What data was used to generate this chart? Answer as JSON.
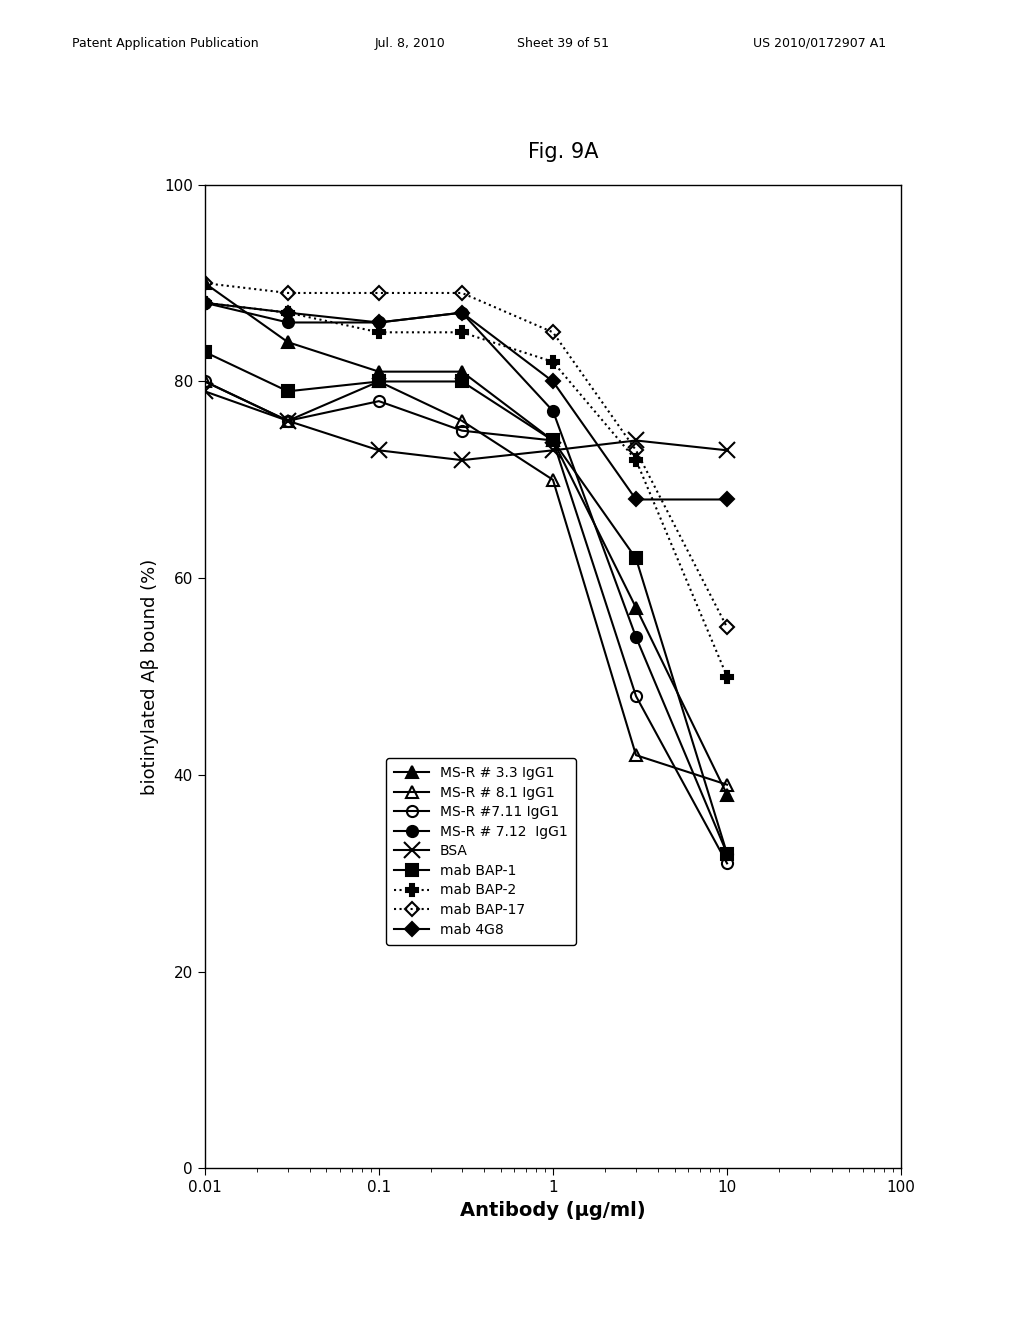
{
  "title": "Fig. 9A",
  "xlabel": "Antibody (μg/ml)",
  "ylabel": "biotinylated Aβ bound (%)",
  "xlim": [
    0.01,
    100
  ],
  "ylim": [
    0,
    100
  ],
  "yticks": [
    0,
    20,
    40,
    60,
    80,
    100
  ],
  "xtick_labels": [
    "0.01",
    "0.1",
    "1",
    "10",
    "100"
  ],
  "series": [
    {
      "label": "MS-R # 3.3 IgG1",
      "x": [
        0.01,
        0.03,
        0.1,
        0.3,
        1,
        3,
        10
      ],
      "y": [
        90,
        84,
        81,
        81,
        74,
        57,
        38
      ],
      "color": "#000000",
      "linestyle": "-",
      "marker": "^",
      "marker_filled": true,
      "linewidth": 1.5
    },
    {
      "label": "MS-R # 8.1 IgG1",
      "x": [
        0.01,
        0.03,
        0.1,
        0.3,
        1,
        3,
        10
      ],
      "y": [
        80,
        76,
        80,
        76,
        70,
        42,
        39
      ],
      "color": "#000000",
      "linestyle": "-",
      "marker": "^",
      "marker_filled": false,
      "linewidth": 1.5
    },
    {
      "label": "MS-R #7.11 IgG1",
      "x": [
        0.01,
        0.03,
        0.1,
        0.3,
        1,
        3,
        10
      ],
      "y": [
        80,
        76,
        78,
        75,
        74,
        48,
        31
      ],
      "color": "#000000",
      "linestyle": "-",
      "marker": "o",
      "marker_filled": false,
      "linewidth": 1.5
    },
    {
      "label": "MS-R # 7.12  IgG1",
      "x": [
        0.01,
        0.03,
        0.1,
        0.3,
        1,
        3,
        10
      ],
      "y": [
        88,
        86,
        86,
        87,
        77,
        54,
        32
      ],
      "color": "#000000",
      "linestyle": "-",
      "marker": "o",
      "marker_filled": true,
      "linewidth": 1.5
    },
    {
      "label": "BSA",
      "x": [
        0.01,
        0.03,
        0.1,
        0.3,
        1,
        3,
        10
      ],
      "y": [
        79,
        76,
        73,
        72,
        73,
        74,
        73
      ],
      "color": "#000000",
      "linestyle": "-",
      "marker": "x",
      "marker_filled": true,
      "linewidth": 1.5
    },
    {
      "label": "mab BAP-1",
      "x": [
        0.01,
        0.03,
        0.1,
        0.3,
        1,
        3,
        10
      ],
      "y": [
        83,
        79,
        80,
        80,
        74,
        62,
        32
      ],
      "color": "#000000",
      "linestyle": "-",
      "marker": "s",
      "marker_filled": true,
      "linewidth": 1.5
    },
    {
      "label": "mab BAP-2",
      "x": [
        0.01,
        0.03,
        0.1,
        0.3,
        1,
        3,
        10
      ],
      "y": [
        88,
        87,
        85,
        85,
        82,
        72,
        50
      ],
      "color": "#000000",
      "linestyle": ":",
      "marker": "P",
      "marker_filled": true,
      "linewidth": 1.5
    },
    {
      "label": "mab BAP-17",
      "x": [
        0.01,
        0.03,
        0.1,
        0.3,
        1,
        3,
        10
      ],
      "y": [
        90,
        89,
        89,
        89,
        85,
        73,
        55
      ],
      "color": "#000000",
      "linestyle": ":",
      "marker": "D",
      "marker_filled": false,
      "linewidth": 1.5
    },
    {
      "label": "mab 4G8",
      "x": [
        0.01,
        0.03,
        0.1,
        0.3,
        1,
        3,
        10
      ],
      "y": [
        88,
        87,
        86,
        87,
        80,
        68,
        68
      ],
      "color": "#000000",
      "linestyle": "-",
      "marker": "D",
      "marker_filled": true,
      "linewidth": 1.5
    }
  ],
  "background_color": "#ffffff",
  "title_fontsize": 15,
  "axis_fontsize": 13,
  "tick_fontsize": 11,
  "legend_fontsize": 10,
  "header_left": "Patent Application Publication",
  "header_date": "Jul. 8, 2010",
  "header_sheet": "Sheet 39 of 51",
  "header_patent": "US 2010/0172907 A1"
}
